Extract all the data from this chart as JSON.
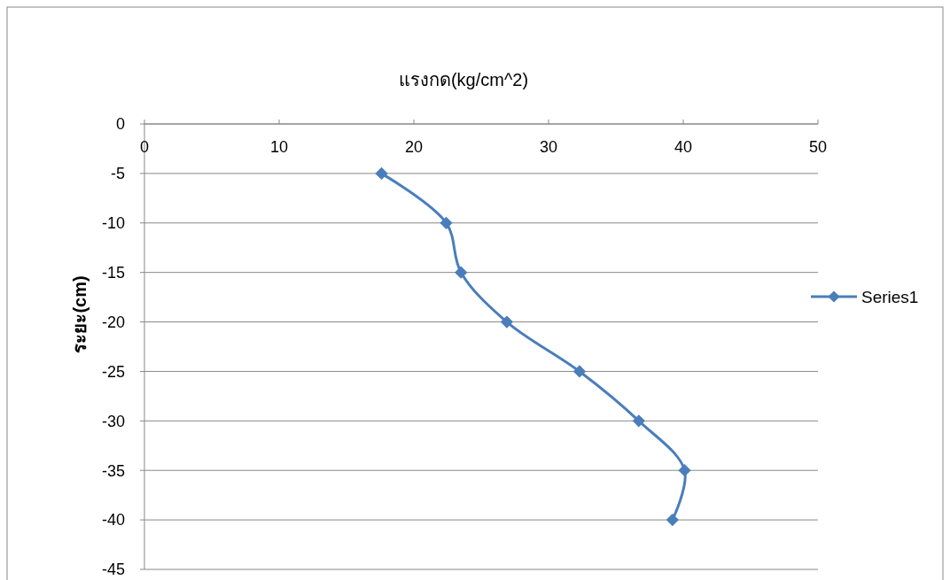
{
  "chart_data": {
    "type": "line",
    "xlabel": "แรงกด(kg/cm^2)",
    "ylabel": "ระยะ(cm)",
    "xlim": [
      0,
      50
    ],
    "xticks": [
      0,
      10,
      20,
      30,
      40,
      50
    ],
    "ylim": [
      -45,
      0
    ],
    "yticks": [
      0,
      -5,
      -10,
      -15,
      -20,
      -25,
      -30,
      -35,
      -40,
      -45
    ],
    "grid": "y",
    "legend": "right",
    "marker": "diamond",
    "line_style": "solid",
    "series": [
      {
        "name": "Series1",
        "color": "#4a7ebb",
        "x": [
          17.6,
          22.4,
          23.5,
          26.9,
          32.3,
          36.7,
          40.1,
          39.2
        ],
        "values": [
          -5,
          -10,
          -15,
          -20,
          -25,
          -30,
          -35,
          -40
        ]
      }
    ]
  }
}
